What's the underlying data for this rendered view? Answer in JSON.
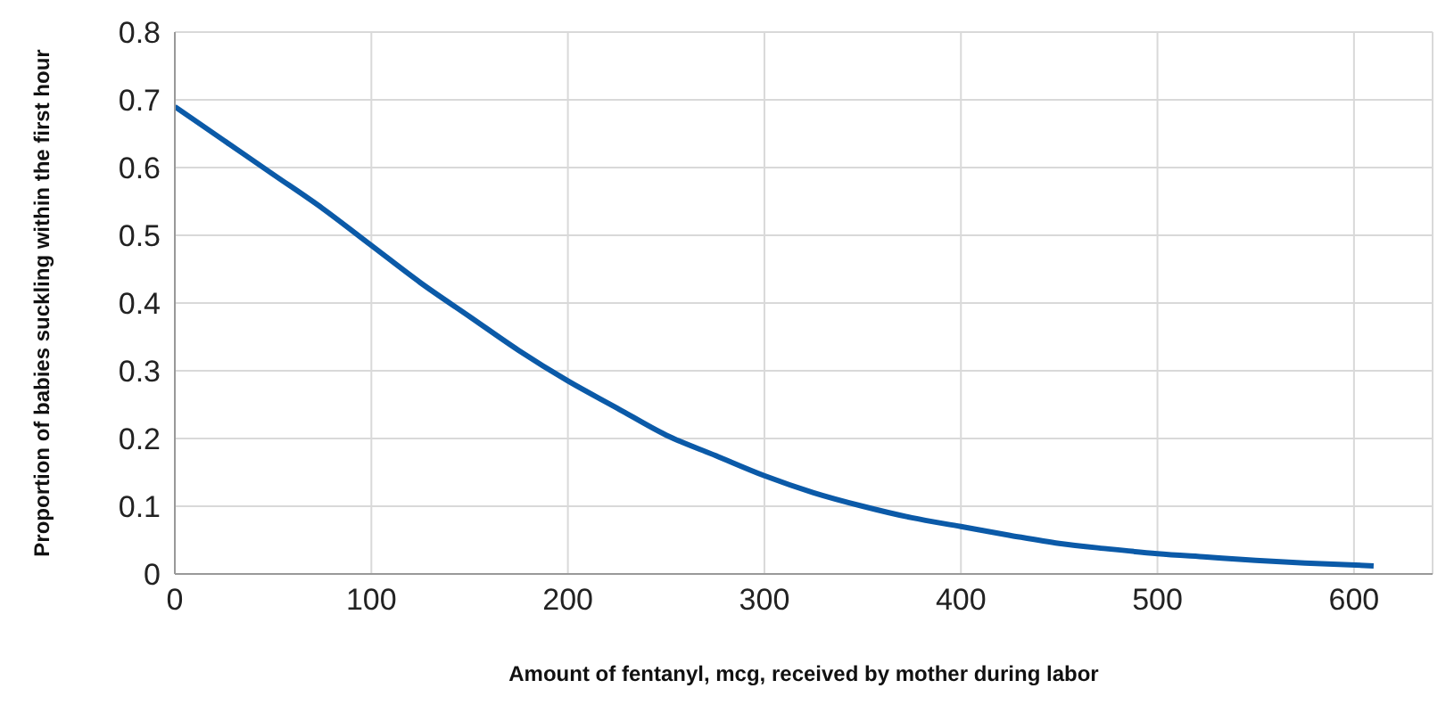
{
  "chart_data": {
    "type": "line",
    "xlabel": "Amount of fentanyl, mcg, received by mother during labor",
    "ylabel": "Proportion of babies suckling within the first hour",
    "x": [
      0,
      25,
      50,
      75,
      100,
      125,
      150,
      175,
      200,
      225,
      250,
      275,
      300,
      325,
      350,
      375,
      400,
      425,
      450,
      475,
      500,
      525,
      550,
      575,
      610
    ],
    "series": [
      {
        "color": "#0b5aa8",
        "values": [
          0.69,
          0.64,
          0.59,
          0.54,
          0.485,
          0.43,
          0.38,
          0.33,
          0.285,
          0.245,
          0.205,
          0.175,
          0.145,
          0.12,
          0.1,
          0.083,
          0.07,
          0.057,
          0.045,
          0.037,
          0.03,
          0.025,
          0.02,
          0.016,
          0.012
        ]
      }
    ],
    "xlim": [
      0,
      640
    ],
    "xticks": [
      0,
      100,
      200,
      300,
      400,
      500,
      600
    ],
    "ylim": [
      0,
      0.8
    ],
    "yticks": [
      0,
      0.1,
      0.2,
      0.3,
      0.4,
      0.5,
      0.6,
      0.7,
      0.8
    ],
    "grid": true,
    "legend": false,
    "marker": "none",
    "line_style": "solid"
  }
}
